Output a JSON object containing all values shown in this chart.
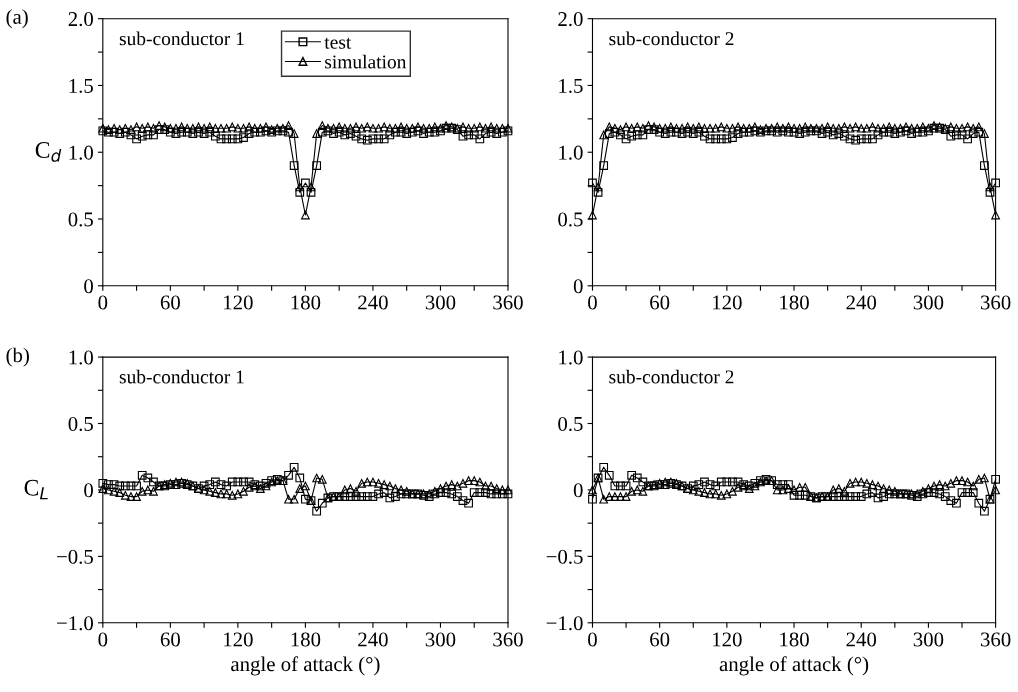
{
  "chart_data": [
    {
      "type": "line",
      "title": "sub-conductor 1",
      "ylabel": "C$_{d}$",
      "annotations": [
        "(a)"
      ],
      "legend": "top",
      "tick_labels": "xy",
      "x": [
        0,
        5,
        10,
        15,
        20,
        25,
        30,
        35,
        40,
        45,
        50,
        55,
        60,
        65,
        70,
        75,
        80,
        85,
        90,
        95,
        100,
        105,
        110,
        115,
        120,
        125,
        130,
        135,
        140,
        145,
        150,
        155,
        160,
        165,
        170,
        175,
        180,
        185,
        190,
        195,
        200,
        205,
        210,
        215,
        220,
        225,
        230,
        235,
        240,
        245,
        250,
        255,
        260,
        265,
        270,
        275,
        280,
        285,
        290,
        295,
        300,
        305,
        310,
        315,
        320,
        325,
        330,
        335,
        340,
        345,
        350,
        355,
        360
      ],
      "xlim": [
        0,
        360
      ],
      "xticks": [
        0,
        {
          "value": 30,
          "label": null
        },
        60,
        {
          "value": 90,
          "label": null
        },
        120,
        {
          "value": 150,
          "label": null
        },
        180,
        {
          "value": 210,
          "label": null
        },
        240,
        {
          "value": 270,
          "label": null
        },
        300,
        {
          "value": 330,
          "label": null
        },
        360
      ],
      "ylim": [
        0,
        2
      ],
      "yticks": [
        0,
        {
          "value": 0.25,
          "label": null
        },
        0.5,
        {
          "value": 0.75,
          "label": null
        },
        {
          "value": 1,
          "label": "1.0"
        },
        {
          "value": 1.25,
          "label": null
        },
        1.5,
        {
          "value": 1.75,
          "label": null
        },
        {
          "value": 2,
          "label": "2.0"
        }
      ],
      "series": [
        {
          "name": "test",
          "color": "#000000",
          "marker": "square",
          "values": [
            1.16,
            1.15,
            1.15,
            1.14,
            1.15,
            1.13,
            1.1,
            1.12,
            1.13,
            1.13,
            1.17,
            1.17,
            1.15,
            1.14,
            1.15,
            1.15,
            1.14,
            1.15,
            1.14,
            1.15,
            1.12,
            1.1,
            1.1,
            1.1,
            1.1,
            1.11,
            1.14,
            1.15,
            1.15,
            1.16,
            1.15,
            1.16,
            1.16,
            1.15,
            0.9,
            0.7,
            0.77,
            0.7,
            0.9,
            1.15,
            1.16,
            1.14,
            1.15,
            1.13,
            1.14,
            1.12,
            1.1,
            1.09,
            1.1,
            1.1,
            1.1,
            1.13,
            1.15,
            1.15,
            1.14,
            1.15,
            1.16,
            1.14,
            1.15,
            1.15,
            1.16,
            1.18,
            1.18,
            1.17,
            1.12,
            1.13,
            1.13,
            1.1,
            1.14,
            1.15,
            1.14,
            1.15,
            1.16
          ]
        },
        {
          "name": "simulation",
          "color": "#000000",
          "marker": "triangle",
          "values": [
            1.18,
            1.17,
            1.18,
            1.17,
            1.18,
            1.17,
            1.19,
            1.18,
            1.19,
            1.18,
            1.2,
            1.19,
            1.18,
            1.18,
            1.19,
            1.18,
            1.18,
            1.19,
            1.18,
            1.19,
            1.18,
            1.18,
            1.18,
            1.19,
            1.18,
            1.18,
            1.19,
            1.18,
            1.18,
            1.19,
            1.17,
            1.18,
            1.18,
            1.2,
            1.14,
            0.74,
            0.53,
            0.74,
            1.14,
            1.2,
            1.18,
            1.18,
            1.19,
            1.18,
            1.18,
            1.19,
            1.18,
            1.19,
            1.18,
            1.18,
            1.19,
            1.18,
            1.18,
            1.19,
            1.18,
            1.18,
            1.19,
            1.18,
            1.18,
            1.19,
            1.18,
            1.2,
            1.19,
            1.18,
            1.19,
            1.18,
            1.18,
            1.19,
            1.18,
            1.19,
            1.18,
            1.18,
            1.18
          ]
        }
      ]
    },
    {
      "type": "line",
      "title": "sub-conductor 2",
      "x": [
        0,
        5,
        10,
        15,
        20,
        25,
        30,
        35,
        40,
        45,
        50,
        55,
        60,
        65,
        70,
        75,
        80,
        85,
        90,
        95,
        100,
        105,
        110,
        115,
        120,
        125,
        130,
        135,
        140,
        145,
        150,
        155,
        160,
        165,
        170,
        175,
        180,
        185,
        190,
        195,
        200,
        205,
        210,
        215,
        220,
        225,
        230,
        235,
        240,
        245,
        250,
        255,
        260,
        265,
        270,
        275,
        280,
        285,
        290,
        295,
        300,
        305,
        310,
        315,
        320,
        325,
        330,
        335,
        340,
        345,
        350,
        355,
        360
      ],
      "xlim": [
        0,
        360
      ],
      "xticks": [
        0,
        {
          "value": 30,
          "label": null
        },
        60,
        {
          "value": 90,
          "label": null
        },
        120,
        {
          "value": 150,
          "label": null
        },
        180,
        {
          "value": 210,
          "label": null
        },
        240,
        {
          "value": 270,
          "label": null
        },
        300,
        {
          "value": 330,
          "label": null
        },
        360
      ],
      "ylim": [
        0,
        2
      ],
      "yticks": [
        0,
        {
          "value": 0.25,
          "label": null
        },
        0.5,
        {
          "value": 0.75,
          "label": null
        },
        {
          "value": 1,
          "label": "1.0"
        },
        {
          "value": 1.25,
          "label": null
        },
        1.5,
        {
          "value": 1.75,
          "label": null
        },
        {
          "value": 2,
          "label": "2.0"
        }
      ],
      "series": [
        {
          "color": "#000000",
          "marker": "square",
          "values": [
            0.77,
            0.7,
            0.9,
            1.14,
            1.15,
            1.13,
            1.1,
            1.12,
            1.13,
            1.13,
            1.17,
            1.17,
            1.15,
            1.14,
            1.15,
            1.15,
            1.14,
            1.15,
            1.14,
            1.15,
            1.12,
            1.1,
            1.1,
            1.1,
            1.1,
            1.11,
            1.14,
            1.15,
            1.15,
            1.16,
            1.15,
            1.16,
            1.16,
            1.15,
            1.16,
            1.15,
            1.15,
            1.14,
            1.15,
            1.16,
            1.16,
            1.14,
            1.15,
            1.13,
            1.14,
            1.12,
            1.1,
            1.09,
            1.1,
            1.1,
            1.1,
            1.13,
            1.15,
            1.15,
            1.14,
            1.15,
            1.16,
            1.14,
            1.15,
            1.15,
            1.16,
            1.18,
            1.18,
            1.17,
            1.12,
            1.13,
            1.13,
            1.1,
            1.14,
            1.15,
            0.9,
            0.7,
            0.77
          ]
        },
        {
          "color": "#000000",
          "marker": "triangle",
          "values": [
            0.53,
            0.74,
            1.13,
            1.19,
            1.18,
            1.17,
            1.19,
            1.18,
            1.19,
            1.18,
            1.2,
            1.19,
            1.18,
            1.18,
            1.19,
            1.18,
            1.18,
            1.19,
            1.18,
            1.19,
            1.18,
            1.18,
            1.18,
            1.19,
            1.18,
            1.18,
            1.19,
            1.18,
            1.18,
            1.19,
            1.17,
            1.18,
            1.18,
            1.19,
            1.18,
            1.19,
            1.18,
            1.18,
            1.19,
            1.18,
            1.18,
            1.18,
            1.19,
            1.18,
            1.18,
            1.19,
            1.18,
            1.19,
            1.18,
            1.18,
            1.19,
            1.18,
            1.18,
            1.19,
            1.18,
            1.18,
            1.19,
            1.18,
            1.18,
            1.19,
            1.18,
            1.2,
            1.19,
            1.18,
            1.19,
            1.18,
            1.18,
            1.19,
            1.18,
            1.19,
            1.14,
            0.74,
            0.53
          ]
        }
      ]
    },
    {
      "type": "line",
      "title": "sub-conductor 1",
      "ylabel": "C$_{L}$",
      "xlabel": "angle of attack (°)",
      "annotations": [
        "(b)"
      ],
      "x": [
        0,
        5,
        10,
        15,
        20,
        25,
        30,
        35,
        40,
        45,
        50,
        55,
        60,
        65,
        70,
        75,
        80,
        85,
        90,
        95,
        100,
        105,
        110,
        115,
        120,
        125,
        130,
        135,
        140,
        145,
        150,
        155,
        160,
        165,
        170,
        175,
        180,
        185,
        190,
        195,
        200,
        205,
        210,
        215,
        220,
        225,
        230,
        235,
        240,
        245,
        250,
        255,
        260,
        265,
        270,
        275,
        280,
        285,
        290,
        295,
        300,
        305,
        310,
        315,
        320,
        325,
        330,
        335,
        340,
        345,
        350,
        355,
        360
      ],
      "xlim": [
        0,
        360
      ],
      "xticks": [
        0,
        {
          "value": 30,
          "label": null
        },
        60,
        {
          "value": 90,
          "label": null
        },
        120,
        {
          "value": 150,
          "label": null
        },
        180,
        {
          "value": 210,
          "label": null
        },
        240,
        {
          "value": 270,
          "label": null
        },
        300,
        {
          "value": 330,
          "label": null
        },
        360
      ],
      "ylim": [
        -1,
        1
      ],
      "yticks": [
        {
          "value": -1,
          "label": "−1.0"
        },
        {
          "value": -0.75,
          "label": null
        },
        {
          "value": -0.5,
          "label": "−0.5"
        },
        {
          "value": -0.25,
          "label": null
        },
        0,
        {
          "value": 0.25,
          "label": null
        },
        0.5,
        {
          "value": 0.75,
          "label": null
        },
        {
          "value": 1,
          "label": "1.0"
        }
      ],
      "series": [
        {
          "color": "#000000",
          "marker": "square",
          "values": [
            0.05,
            0.04,
            0.04,
            0.03,
            0.03,
            0.03,
            0.03,
            0.11,
            0.09,
            0.06,
            0.03,
            0.03,
            0.04,
            0.04,
            0.05,
            0.04,
            0.03,
            0.01,
            0.03,
            0.04,
            0.06,
            0.04,
            0.03,
            0.06,
            0.06,
            0.06,
            0.06,
            0.04,
            0.03,
            0.05,
            0.07,
            0.08,
            0.07,
            0.11,
            0.17,
            0.09,
            -0.07,
            -0.08,
            -0.16,
            -0.1,
            -0.06,
            -0.05,
            -0.05,
            -0.05,
            -0.05,
            -0.05,
            -0.05,
            -0.05,
            -0.05,
            -0.03,
            -0.02,
            -0.06,
            -0.05,
            -0.03,
            -0.03,
            -0.03,
            -0.03,
            -0.04,
            -0.05,
            -0.03,
            -0.02,
            -0.02,
            -0.03,
            -0.05,
            -0.08,
            -0.1,
            -0.02,
            -0.02,
            -0.02,
            -0.03,
            -0.03,
            -0.03,
            -0.03
          ]
        },
        {
          "color": "#000000",
          "marker": "triangle",
          "values": [
            0.01,
            0,
            -0.01,
            -0.02,
            -0.04,
            -0.05,
            -0.05,
            -0.01,
            0,
            -0.01,
            0.03,
            0.04,
            0.05,
            0.06,
            0.06,
            0.05,
            0.03,
            0.01,
            0,
            -0.01,
            -0.02,
            -0.03,
            -0.03,
            -0.04,
            -0.03,
            -0.01,
            0.02,
            0.03,
            0.01,
            0.03,
            0.06,
            0.07,
            0.07,
            -0.07,
            -0.07,
            0.01,
            0.03,
            -0.08,
            0.09,
            0.08,
            -0.06,
            -0.05,
            -0.05,
            0,
            0.01,
            -0.01,
            0.05,
            0.06,
            0.06,
            0.05,
            0.04,
            0.03,
            0.01,
            0,
            -0.01,
            -0.03,
            -0.03,
            -0.03,
            -0.03,
            -0.01,
            0.01,
            0.03,
            0.04,
            0.03,
            0.05,
            0.07,
            0.07,
            0.06,
            0.03,
            0.03,
            0.01,
            0,
            0
          ]
        }
      ]
    },
    {
      "type": "line",
      "title": "sub-conductor 2",
      "xlabel": "angle of attack (°)",
      "x": [
        0,
        5,
        10,
        15,
        20,
        25,
        30,
        35,
        40,
        45,
        50,
        55,
        60,
        65,
        70,
        75,
        80,
        85,
        90,
        95,
        100,
        105,
        110,
        115,
        120,
        125,
        130,
        135,
        140,
        145,
        150,
        155,
        160,
        165,
        170,
        175,
        180,
        185,
        190,
        195,
        200,
        205,
        210,
        215,
        220,
        225,
        230,
        235,
        240,
        245,
        250,
        255,
        260,
        265,
        270,
        275,
        280,
        285,
        290,
        295,
        300,
        305,
        310,
        315,
        320,
        325,
        330,
        335,
        340,
        345,
        350,
        355,
        360
      ],
      "xlim": [
        0,
        360
      ],
      "xticks": [
        0,
        {
          "value": 30,
          "label": null
        },
        60,
        {
          "value": 90,
          "label": null
        },
        120,
        {
          "value": 150,
          "label": null
        },
        180,
        {
          "value": 210,
          "label": null
        },
        240,
        {
          "value": 270,
          "label": null
        },
        300,
        {
          "value": 330,
          "label": null
        },
        360
      ],
      "ylim": [
        -1,
        1
      ],
      "yticks": [
        {
          "value": -1,
          "label": "−1.0"
        },
        {
          "value": -0.75,
          "label": null
        },
        {
          "value": -0.5,
          "label": "−0.5"
        },
        {
          "value": -0.25,
          "label": null
        },
        0,
        {
          "value": 0.25,
          "label": null
        },
        0.5,
        {
          "value": 0.75,
          "label": null
        },
        {
          "value": 1,
          "label": "1.0"
        }
      ],
      "series": [
        {
          "color": "#000000",
          "marker": "square",
          "values": [
            -0.07,
            0.09,
            0.17,
            0.11,
            0.03,
            0.03,
            0.03,
            0.11,
            0.09,
            0.06,
            0.03,
            0.03,
            0.04,
            0.04,
            0.05,
            0.04,
            0.03,
            0.01,
            0.03,
            0.04,
            0.06,
            0.04,
            0.03,
            0.06,
            0.06,
            0.06,
            0.06,
            0.04,
            0.03,
            0.05,
            0.07,
            0.08,
            0.07,
            0.04,
            0.04,
            0.04,
            -0.04,
            -0.04,
            -0.04,
            -0.05,
            -0.06,
            -0.05,
            -0.05,
            -0.05,
            -0.05,
            -0.05,
            -0.05,
            -0.05,
            -0.05,
            -0.03,
            -0.02,
            -0.06,
            -0.05,
            -0.03,
            -0.03,
            -0.03,
            -0.03,
            -0.04,
            -0.05,
            -0.03,
            -0.02,
            -0.02,
            -0.03,
            -0.05,
            -0.08,
            -0.1,
            -0.02,
            -0.02,
            -0.02,
            -0.1,
            -0.16,
            -0.07,
            0.08
          ]
        },
        {
          "color": "#000000",
          "marker": "triangle",
          "values": [
            0,
            0.09,
            -0.07,
            -0.05,
            -0.05,
            -0.05,
            -0.05,
            -0.01,
            0,
            -0.01,
            0.03,
            0.04,
            0.05,
            0.06,
            0.06,
            0.05,
            0.03,
            0.01,
            0,
            -0.01,
            -0.02,
            -0.03,
            -0.03,
            -0.04,
            -0.03,
            -0.01,
            0.02,
            0.03,
            0.01,
            0.03,
            0.06,
            0.07,
            0.07,
            0,
            0,
            0.01,
            0,
            0.02,
            0.02,
            -0.05,
            -0.06,
            -0.05,
            -0.05,
            0,
            0.01,
            -0.01,
            0.05,
            0.06,
            0.06,
            0.05,
            0.04,
            0.03,
            0.01,
            0,
            -0.01,
            -0.03,
            -0.03,
            -0.03,
            -0.03,
            -0.01,
            0.01,
            0.03,
            0.04,
            0.03,
            0.05,
            0.07,
            0.07,
            0.06,
            0.03,
            0.08,
            0.09,
            -0.07,
            0
          ]
        }
      ]
    }
  ]
}
